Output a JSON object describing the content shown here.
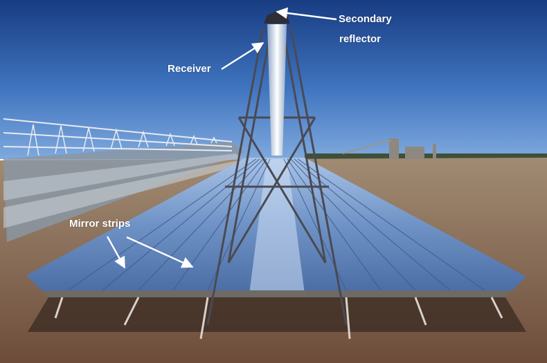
{
  "annotations": {
    "secondary_reflector_line1": "Secondary",
    "secondary_reflector_line2": "reflector",
    "receiver": "Receiver",
    "mirror_strips": "Mirror strips"
  },
  "colors": {
    "sky_top": "#1a3f86",
    "sky_bottom": "#6f9ed6",
    "ground": "#8a6a52",
    "mirror": "#7ea0cf",
    "annotation_text": "#ffffff"
  }
}
